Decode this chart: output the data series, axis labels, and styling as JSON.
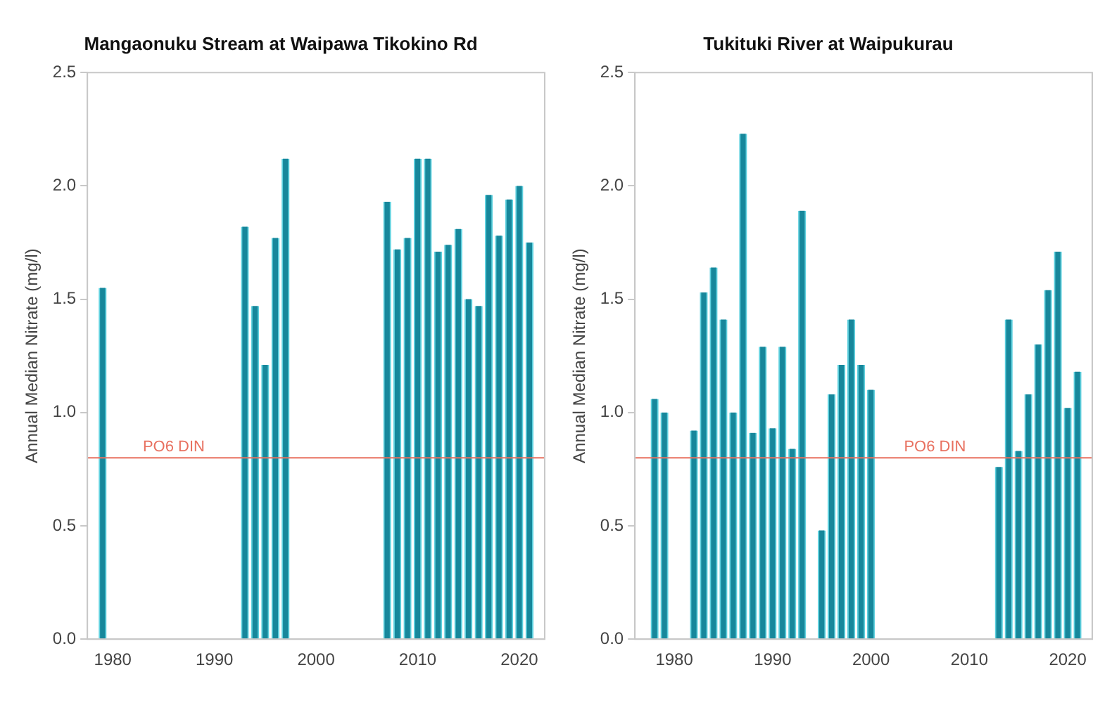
{
  "chart_data": [
    {
      "type": "bar",
      "title": "Mangaonuku Stream at Waipawa Tikokino Rd",
      "ylabel": "Annual Median Nitrate (mg/l)",
      "x": [
        1979,
        1993,
        1994,
        1995,
        1996,
        1997,
        2007,
        2008,
        2009,
        2010,
        2011,
        2012,
        2013,
        2014,
        2015,
        2016,
        2017,
        2018,
        2019,
        2020,
        2021
      ],
      "values": [
        1.55,
        1.82,
        1.47,
        1.21,
        1.77,
        2.12,
        1.93,
        1.72,
        1.77,
        2.12,
        2.12,
        1.71,
        1.74,
        1.81,
        1.5,
        1.47,
        1.96,
        1.78,
        1.94,
        2.0,
        1.75
      ],
      "color": "#17879b",
      "xlim": [
        1977.5,
        2022.5
      ],
      "xticks": [
        1980,
        1990,
        2000,
        2010,
        2020
      ],
      "ylim": [
        0,
        2.5
      ],
      "yticks": [
        {
          "value": 0,
          "label": "0.0"
        },
        0.5,
        {
          "value": 1,
          "label": "1.0"
        },
        1.5,
        {
          "value": 2,
          "label": "2.0"
        },
        2.5
      ],
      "ref_lines": [
        {
          "axis": "y",
          "value": 0.8,
          "label": "PO6 DIN",
          "color": "#e8705f"
        }
      ],
      "grid": false,
      "legend": false
    },
    {
      "type": "bar",
      "title": "Tukituki River at Waipukurau",
      "ylabel": "Annual Median Nitrate (mg/l)",
      "x": [
        1978,
        1979,
        1982,
        1983,
        1984,
        1985,
        1986,
        1987,
        1988,
        1989,
        1990,
        1991,
        1992,
        1993,
        1995,
        1996,
        1997,
        1998,
        1999,
        2000,
        2013,
        2014,
        2015,
        2016,
        2017,
        2018,
        2019,
        2020,
        2021
      ],
      "values": [
        1.06,
        1.0,
        0.92,
        1.53,
        1.64,
        1.41,
        1.0,
        2.23,
        0.91,
        1.29,
        0.93,
        1.29,
        0.84,
        1.89,
        0.48,
        1.08,
        1.21,
        1.41,
        1.21,
        1.1,
        0.76,
        1.41,
        0.83,
        1.08,
        1.3,
        1.54,
        1.71,
        1.02,
        1.18
      ],
      "color": "#17879b",
      "xlim": [
        1976,
        2022.5
      ],
      "xticks": [
        1980,
        1990,
        2000,
        2010,
        2020
      ],
      "ylim": [
        0,
        2.5
      ],
      "yticks": [
        {
          "value": 0,
          "label": "0.0"
        },
        0.5,
        {
          "value": 1,
          "label": "1.0"
        },
        1.5,
        {
          "value": 2,
          "label": "2.0"
        },
        2.5
      ],
      "ref_lines": [
        {
          "axis": "y",
          "value": 0.8,
          "label": "PO6 DIN",
          "color": "#e8705f"
        }
      ],
      "grid": false,
      "legend": false
    }
  ]
}
